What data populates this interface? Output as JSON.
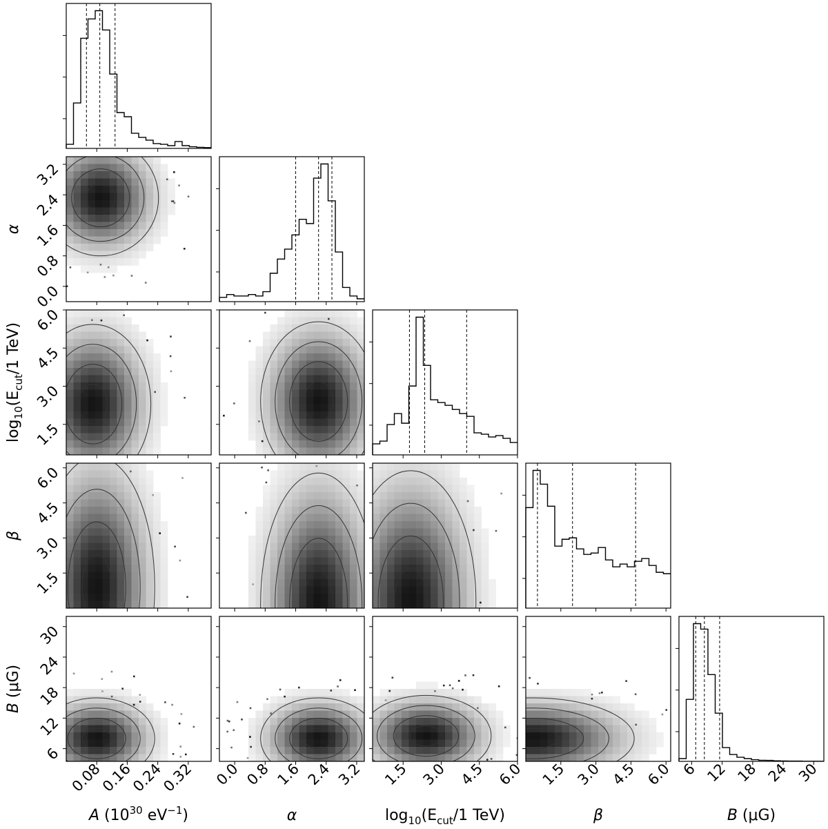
{
  "chart_data": {
    "type": "corner",
    "title": "",
    "parameters": [
      {
        "key": "A",
        "label_main": "A",
        "label_rest": " (10",
        "label_sup": "30",
        "label_rest2": " eV",
        "label_sup2": "−1",
        "label_end": ")",
        "range": [
          0.0,
          0.38
        ],
        "ticks": [
          0.08,
          0.16,
          0.24,
          0.32
        ],
        "tick_labels": [
          "0.08",
          "0.16",
          "0.24",
          "0.32"
        ],
        "quantiles": [
          0.053,
          0.088,
          0.128
        ]
      },
      {
        "key": "alpha",
        "label_main": "α",
        "range": [
          -0.4,
          3.4
        ],
        "ticks": [
          0.0,
          0.8,
          1.6,
          2.4,
          3.2
        ],
        "tick_labels": [
          "0.0",
          "0.8",
          "1.6",
          "2.4",
          "3.2"
        ],
        "quantiles": [
          1.6,
          2.2,
          2.55
        ]
      },
      {
        "key": "logEcut",
        "label_main": "log",
        "label_sub": "10",
        "label_rest": "(E",
        "label_sub2": "cut",
        "label_end": "/1 TeV)",
        "range": [
          0.3,
          6.0
        ],
        "ticks": [
          1.5,
          3.0,
          4.5,
          6.0
        ],
        "tick_labels": [
          "1.5",
          "3.0",
          "4.5",
          "6.0"
        ],
        "quantiles": [
          1.75,
          2.35,
          4.0
        ]
      },
      {
        "key": "beta",
        "label_main": "β",
        "range": [
          0.0,
          6.2
        ],
        "ticks": [
          1.5,
          3.0,
          4.5,
          6.0
        ],
        "tick_labels": [
          "1.5",
          "3.0",
          "4.5",
          "6.0"
        ],
        "quantiles": [
          0.5,
          2.0,
          4.7
        ]
      },
      {
        "key": "B",
        "label_main": "B",
        "label_rest": " (μG)",
        "range": [
          3.5,
          32.0
        ],
        "ticks": [
          6,
          12,
          18,
          24,
          30
        ],
        "tick_labels": [
          "6",
          "12",
          "18",
          "24",
          "30"
        ],
        "quantiles": [
          6.8,
          8.5,
          11.5
        ]
      }
    ],
    "histograms": [
      {
        "param": "A",
        "bin_edges": [
          0.0,
          0.019,
          0.038,
          0.057,
          0.076,
          0.095,
          0.114,
          0.133,
          0.152,
          0.171,
          0.19,
          0.209,
          0.228,
          0.247,
          0.266,
          0.285,
          0.304,
          0.323,
          0.342,
          0.361,
          0.38
        ],
        "counts": [
          0.03,
          0.33,
          0.8,
          0.94,
          1.0,
          0.86,
          0.54,
          0.26,
          0.23,
          0.11,
          0.08,
          0.06,
          0.035,
          0.03,
          0.02,
          0.05,
          0.02,
          0.012,
          0.008,
          0.006
        ]
      },
      {
        "param": "alpha",
        "bin_edges": [
          -0.4,
          -0.21,
          -0.02,
          0.17,
          0.36,
          0.55,
          0.74,
          0.93,
          1.12,
          1.31,
          1.5,
          1.69,
          1.88,
          2.07,
          2.26,
          2.45,
          2.64,
          2.83,
          3.02,
          3.21,
          3.4
        ],
        "counts": [
          0.03,
          0.05,
          0.04,
          0.04,
          0.05,
          0.04,
          0.07,
          0.2,
          0.3,
          0.37,
          0.47,
          0.58,
          0.55,
          0.87,
          0.97,
          0.71,
          0.35,
          0.1,
          0.04,
          0.02
        ]
      },
      {
        "param": "logEcut",
        "bin_edges": [
          0.3,
          0.585,
          0.87,
          1.155,
          1.44,
          1.725,
          2.01,
          2.295,
          2.58,
          2.865,
          3.15,
          3.435,
          3.72,
          4.005,
          4.29,
          4.575,
          4.86,
          5.145,
          5.43,
          5.715,
          6.0
        ],
        "counts": [
          0.08,
          0.1,
          0.22,
          0.3,
          0.23,
          0.5,
          1.0,
          0.65,
          0.4,
          0.38,
          0.36,
          0.33,
          0.3,
          0.28,
          0.16,
          0.15,
          0.13,
          0.14,
          0.12,
          0.09
        ]
      },
      {
        "param": "beta",
        "bin_edges": [
          0.0,
          0.31,
          0.62,
          0.93,
          1.24,
          1.55,
          1.86,
          2.17,
          2.48,
          2.79,
          3.1,
          3.41,
          3.72,
          4.03,
          4.34,
          4.65,
          4.96,
          5.27,
          5.58,
          5.89,
          6.2
        ],
        "counts": [
          0.73,
          1.0,
          0.9,
          0.74,
          0.45,
          0.5,
          0.51,
          0.43,
          0.39,
          0.4,
          0.44,
          0.35,
          0.3,
          0.32,
          0.3,
          0.34,
          0.36,
          0.31,
          0.26,
          0.25
        ]
      },
      {
        "param": "B",
        "bin_edges": [
          3.5,
          4.925,
          6.35,
          7.775,
          9.2,
          10.625,
          12.05,
          13.475,
          14.9,
          16.325,
          17.75,
          19.175,
          20.6,
          22.025,
          23.45,
          24.875,
          26.3,
          27.725,
          29.15,
          30.575,
          32.0
        ],
        "counts": [
          0.02,
          0.45,
          1.0,
          0.96,
          0.63,
          0.35,
          0.1,
          0.05,
          0.03,
          0.02,
          0.012,
          0.008,
          0.007,
          0.004,
          0.003,
          0.002,
          0.002,
          0.001,
          0.001,
          0.001
        ]
      }
    ],
    "pair_peaks": [
      {
        "x": "A",
        "y": "alpha",
        "peak": [
          0.09,
          2.32
        ]
      },
      {
        "x": "A",
        "y": "logEcut",
        "peak": [
          0.07,
          2.3
        ]
      },
      {
        "x": "alpha",
        "y": "logEcut",
        "peak": [
          2.2,
          2.4
        ]
      },
      {
        "x": "A",
        "y": "beta",
        "peak": [
          0.08,
          0.9
        ]
      },
      {
        "x": "alpha",
        "y": "beta",
        "peak": [
          2.2,
          0.2
        ]
      },
      {
        "x": "logEcut",
        "y": "beta",
        "peak": [
          1.8,
          0.3
        ]
      },
      {
        "x": "A",
        "y": "B",
        "peak": [
          0.08,
          8.0
        ]
      },
      {
        "x": "alpha",
        "y": "B",
        "peak": [
          2.2,
          8.0
        ]
      },
      {
        "x": "logEcut",
        "y": "B",
        "peak": [
          2.4,
          8.5
        ]
      },
      {
        "x": "beta",
        "y": "B",
        "peak": [
          0.3,
          8.0
        ]
      }
    ],
    "grid": false,
    "legend": "none"
  }
}
